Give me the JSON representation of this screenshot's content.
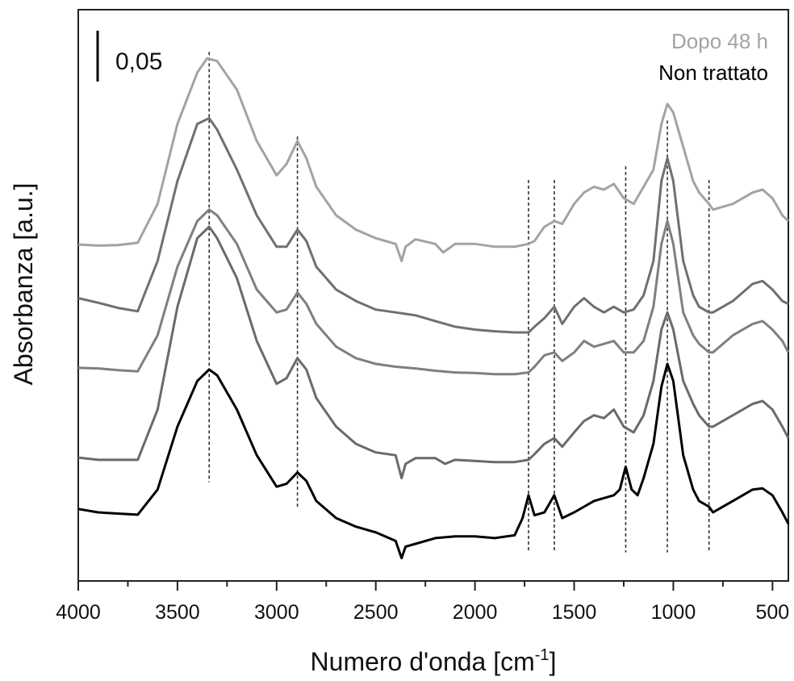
{
  "chart_data": {
    "type": "line",
    "title": "",
    "xlabel": "Numero d'onda [cm",
    "xlabel_sup": "-1",
    "xlabel_suffix": "]",
    "ylabel": "Absorbanza [a.u.]",
    "x_reversed": true,
    "xlim": [
      4000,
      420
    ],
    "ylim": [
      0,
      1
    ],
    "y_ticks_shown": false,
    "x_ticks": [
      "4000",
      "3500",
      "3000",
      "2500",
      "2000",
      "1500",
      "1000",
      "500"
    ],
    "grid": false,
    "legend_position": "top-right",
    "legend": [
      {
        "label": "Dopo 48 h",
        "color": "#a3a3a3"
      },
      {
        "label": "Non trattato",
        "color": "#000000"
      }
    ],
    "scale_bar_label": "0,05",
    "reference_lines": [
      3340,
      2895,
      1730,
      1600,
      1240,
      1030,
      820
    ],
    "series": [
      {
        "color": "#a3a3a3",
        "points": [
          [
            4000,
            0.589
          ],
          [
            3900,
            0.587
          ],
          [
            3800,
            0.588
          ],
          [
            3700,
            0.592
          ],
          [
            3600,
            0.66
          ],
          [
            3500,
            0.8
          ],
          [
            3400,
            0.89
          ],
          [
            3350,
            0.915
          ],
          [
            3300,
            0.91
          ],
          [
            3200,
            0.86
          ],
          [
            3100,
            0.77
          ],
          [
            3000,
            0.71
          ],
          [
            2950,
            0.73
          ],
          [
            2895,
            0.77
          ],
          [
            2850,
            0.74
          ],
          [
            2800,
            0.69
          ],
          [
            2700,
            0.64
          ],
          [
            2600,
            0.615
          ],
          [
            2500,
            0.6
          ],
          [
            2400,
            0.59
          ],
          [
            2370,
            0.56
          ],
          [
            2350,
            0.585
          ],
          [
            2300,
            0.598
          ],
          [
            2200,
            0.59
          ],
          [
            2160,
            0.575
          ],
          [
            2100,
            0.59
          ],
          [
            2000,
            0.59
          ],
          [
            1900,
            0.585
          ],
          [
            1800,
            0.585
          ],
          [
            1730,
            0.59
          ],
          [
            1700,
            0.595
          ],
          [
            1650,
            0.62
          ],
          [
            1600,
            0.63
          ],
          [
            1560,
            0.625
          ],
          [
            1500,
            0.66
          ],
          [
            1450,
            0.68
          ],
          [
            1400,
            0.69
          ],
          [
            1350,
            0.685
          ],
          [
            1300,
            0.695
          ],
          [
            1250,
            0.67
          ],
          [
            1200,
            0.66
          ],
          [
            1150,
            0.69
          ],
          [
            1100,
            0.72
          ],
          [
            1060,
            0.8
          ],
          [
            1030,
            0.835
          ],
          [
            1000,
            0.82
          ],
          [
            950,
            0.76
          ],
          [
            900,
            0.7
          ],
          [
            870,
            0.68
          ],
          [
            820,
            0.66
          ],
          [
            800,
            0.65
          ],
          [
            700,
            0.66
          ],
          [
            600,
            0.68
          ],
          [
            550,
            0.685
          ],
          [
            500,
            0.67
          ],
          [
            450,
            0.64
          ],
          [
            420,
            0.63
          ]
        ]
      },
      {
        "color": "#707070",
        "points": [
          [
            4000,
            0.495
          ],
          [
            3900,
            0.487
          ],
          [
            3800,
            0.478
          ],
          [
            3700,
            0.472
          ],
          [
            3600,
            0.56
          ],
          [
            3500,
            0.7
          ],
          [
            3400,
            0.8
          ],
          [
            3340,
            0.81
          ],
          [
            3300,
            0.79
          ],
          [
            3200,
            0.72
          ],
          [
            3100,
            0.64
          ],
          [
            3000,
            0.585
          ],
          [
            2950,
            0.585
          ],
          [
            2895,
            0.615
          ],
          [
            2850,
            0.595
          ],
          [
            2800,
            0.55
          ],
          [
            2700,
            0.51
          ],
          [
            2600,
            0.49
          ],
          [
            2500,
            0.475
          ],
          [
            2400,
            0.47
          ],
          [
            2300,
            0.465
          ],
          [
            2200,
            0.455
          ],
          [
            2100,
            0.445
          ],
          [
            2000,
            0.44
          ],
          [
            1900,
            0.437
          ],
          [
            1800,
            0.435
          ],
          [
            1730,
            0.435
          ],
          [
            1700,
            0.445
          ],
          [
            1650,
            0.46
          ],
          [
            1600,
            0.48
          ],
          [
            1560,
            0.45
          ],
          [
            1500,
            0.48
          ],
          [
            1450,
            0.495
          ],
          [
            1400,
            0.48
          ],
          [
            1350,
            0.47
          ],
          [
            1300,
            0.48
          ],
          [
            1250,
            0.47
          ],
          [
            1200,
            0.475
          ],
          [
            1150,
            0.5
          ],
          [
            1100,
            0.56
          ],
          [
            1060,
            0.7
          ],
          [
            1030,
            0.74
          ],
          [
            1000,
            0.7
          ],
          [
            950,
            0.56
          ],
          [
            900,
            0.5
          ],
          [
            870,
            0.48
          ],
          [
            820,
            0.47
          ],
          [
            800,
            0.47
          ],
          [
            700,
            0.49
          ],
          [
            600,
            0.52
          ],
          [
            550,
            0.525
          ],
          [
            500,
            0.51
          ],
          [
            450,
            0.49
          ],
          [
            420,
            0.485
          ]
        ]
      },
      {
        "color": "#7f7f7f",
        "points": [
          [
            4000,
            0.373
          ],
          [
            3900,
            0.372
          ],
          [
            3800,
            0.369
          ],
          [
            3700,
            0.367
          ],
          [
            3600,
            0.43
          ],
          [
            3500,
            0.55
          ],
          [
            3400,
            0.63
          ],
          [
            3340,
            0.65
          ],
          [
            3300,
            0.64
          ],
          [
            3200,
            0.59
          ],
          [
            3100,
            0.51
          ],
          [
            3000,
            0.47
          ],
          [
            2950,
            0.475
          ],
          [
            2895,
            0.505
          ],
          [
            2850,
            0.485
          ],
          [
            2800,
            0.45
          ],
          [
            2700,
            0.41
          ],
          [
            2600,
            0.39
          ],
          [
            2500,
            0.38
          ],
          [
            2400,
            0.375
          ],
          [
            2300,
            0.372
          ],
          [
            2200,
            0.368
          ],
          [
            2100,
            0.365
          ],
          [
            2000,
            0.364
          ],
          [
            1900,
            0.362
          ],
          [
            1800,
            0.362
          ],
          [
            1730,
            0.365
          ],
          [
            1700,
            0.375
          ],
          [
            1650,
            0.395
          ],
          [
            1600,
            0.4
          ],
          [
            1560,
            0.385
          ],
          [
            1500,
            0.4
          ],
          [
            1450,
            0.42
          ],
          [
            1400,
            0.41
          ],
          [
            1350,
            0.415
          ],
          [
            1300,
            0.42
          ],
          [
            1250,
            0.4
          ],
          [
            1200,
            0.4
          ],
          [
            1150,
            0.42
          ],
          [
            1100,
            0.48
          ],
          [
            1060,
            0.59
          ],
          [
            1030,
            0.63
          ],
          [
            1000,
            0.59
          ],
          [
            950,
            0.47
          ],
          [
            900,
            0.43
          ],
          [
            870,
            0.415
          ],
          [
            820,
            0.4
          ],
          [
            800,
            0.4
          ],
          [
            700,
            0.43
          ],
          [
            600,
            0.45
          ],
          [
            550,
            0.455
          ],
          [
            500,
            0.44
          ],
          [
            450,
            0.42
          ],
          [
            420,
            0.4
          ]
        ]
      },
      {
        "color": "#6a6a6a",
        "points": [
          [
            4000,
            0.216
          ],
          [
            3900,
            0.212
          ],
          [
            3800,
            0.212
          ],
          [
            3700,
            0.212
          ],
          [
            3600,
            0.3
          ],
          [
            3500,
            0.48
          ],
          [
            3400,
            0.6
          ],
          [
            3340,
            0.62
          ],
          [
            3300,
            0.6
          ],
          [
            3200,
            0.53
          ],
          [
            3100,
            0.42
          ],
          [
            3000,
            0.345
          ],
          [
            2950,
            0.355
          ],
          [
            2895,
            0.39
          ],
          [
            2850,
            0.37
          ],
          [
            2800,
            0.32
          ],
          [
            2700,
            0.27
          ],
          [
            2600,
            0.24
          ],
          [
            2500,
            0.225
          ],
          [
            2400,
            0.22
          ],
          [
            2370,
            0.18
          ],
          [
            2350,
            0.205
          ],
          [
            2300,
            0.215
          ],
          [
            2200,
            0.215
          ],
          [
            2150,
            0.205
          ],
          [
            2100,
            0.212
          ],
          [
            2000,
            0.21
          ],
          [
            1900,
            0.208
          ],
          [
            1800,
            0.208
          ],
          [
            1730,
            0.212
          ],
          [
            1700,
            0.222
          ],
          [
            1650,
            0.24
          ],
          [
            1600,
            0.25
          ],
          [
            1560,
            0.235
          ],
          [
            1500,
            0.26
          ],
          [
            1450,
            0.28
          ],
          [
            1400,
            0.29
          ],
          [
            1350,
            0.285
          ],
          [
            1300,
            0.3
          ],
          [
            1250,
            0.27
          ],
          [
            1200,
            0.26
          ],
          [
            1150,
            0.29
          ],
          [
            1100,
            0.35
          ],
          [
            1060,
            0.44
          ],
          [
            1030,
            0.47
          ],
          [
            1000,
            0.44
          ],
          [
            950,
            0.35
          ],
          [
            900,
            0.31
          ],
          [
            870,
            0.29
          ],
          [
            820,
            0.27
          ],
          [
            800,
            0.27
          ],
          [
            700,
            0.29
          ],
          [
            600,
            0.31
          ],
          [
            550,
            0.315
          ],
          [
            500,
            0.3
          ],
          [
            450,
            0.27
          ],
          [
            420,
            0.25
          ]
        ]
      },
      {
        "color": "#000000",
        "points": [
          [
            4000,
            0.126
          ],
          [
            3900,
            0.12
          ],
          [
            3800,
            0.118
          ],
          [
            3700,
            0.116
          ],
          [
            3600,
            0.16
          ],
          [
            3500,
            0.27
          ],
          [
            3400,
            0.35
          ],
          [
            3340,
            0.37
          ],
          [
            3300,
            0.36
          ],
          [
            3200,
            0.3
          ],
          [
            3100,
            0.22
          ],
          [
            3000,
            0.165
          ],
          [
            2950,
            0.17
          ],
          [
            2895,
            0.19
          ],
          [
            2850,
            0.175
          ],
          [
            2800,
            0.14
          ],
          [
            2700,
            0.11
          ],
          [
            2600,
            0.095
          ],
          [
            2500,
            0.085
          ],
          [
            2400,
            0.07
          ],
          [
            2370,
            0.04
          ],
          [
            2350,
            0.06
          ],
          [
            2300,
            0.065
          ],
          [
            2200,
            0.075
          ],
          [
            2100,
            0.078
          ],
          [
            2000,
            0.078
          ],
          [
            1900,
            0.075
          ],
          [
            1800,
            0.08
          ],
          [
            1760,
            0.11
          ],
          [
            1730,
            0.15
          ],
          [
            1700,
            0.115
          ],
          [
            1650,
            0.12
          ],
          [
            1600,
            0.15
          ],
          [
            1560,
            0.11
          ],
          [
            1500,
            0.12
          ],
          [
            1450,
            0.13
          ],
          [
            1400,
            0.14
          ],
          [
            1350,
            0.145
          ],
          [
            1300,
            0.15
          ],
          [
            1270,
            0.16
          ],
          [
            1240,
            0.2
          ],
          [
            1210,
            0.16
          ],
          [
            1180,
            0.15
          ],
          [
            1150,
            0.18
          ],
          [
            1100,
            0.24
          ],
          [
            1060,
            0.34
          ],
          [
            1030,
            0.38
          ],
          [
            1000,
            0.35
          ],
          [
            950,
            0.22
          ],
          [
            900,
            0.16
          ],
          [
            870,
            0.14
          ],
          [
            820,
            0.13
          ],
          [
            800,
            0.12
          ],
          [
            700,
            0.14
          ],
          [
            600,
            0.16
          ],
          [
            550,
            0.162
          ],
          [
            500,
            0.15
          ],
          [
            450,
            0.12
          ],
          [
            420,
            0.1
          ]
        ]
      }
    ]
  }
}
